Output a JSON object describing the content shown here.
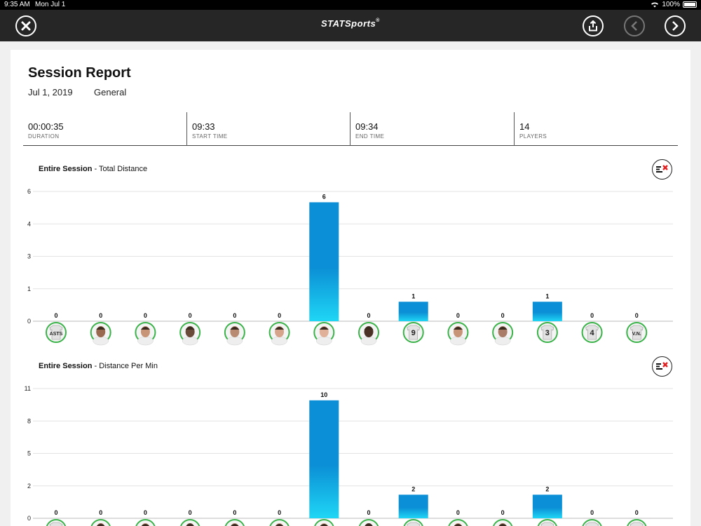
{
  "status": {
    "time": "9:35 AM",
    "date": "Mon Jul 1",
    "battery": "100%"
  },
  "nav": {
    "logo": "STATSports",
    "logo_reg": "®"
  },
  "report": {
    "title": "Session Report",
    "date": "Jul 1, 2019",
    "type": "General",
    "stats": [
      {
        "value": "00:00:35",
        "label": "DURATION"
      },
      {
        "value": "09:33",
        "label": "START TIME"
      },
      {
        "value": "09:34",
        "label": "END TIME"
      },
      {
        "value": "14",
        "label": "PLAYERS"
      }
    ]
  },
  "players": [
    {
      "kind": "shirt",
      "text": "ASTS"
    },
    {
      "kind": "photo",
      "skin": "#9a6a50"
    },
    {
      "kind": "photo",
      "skin": "#c89478"
    },
    {
      "kind": "photo",
      "skin": "#6a4a38"
    },
    {
      "kind": "photo",
      "skin": "#b88a72"
    },
    {
      "kind": "photo",
      "skin": "#d6a48a"
    },
    {
      "kind": "photo",
      "skin": "#e0b098"
    },
    {
      "kind": "photo",
      "skin": "#4a3326"
    },
    {
      "kind": "shirt",
      "text": "9"
    },
    {
      "kind": "photo",
      "skin": "#c89478"
    },
    {
      "kind": "photo",
      "skin": "#a87c66"
    },
    {
      "kind": "shirt",
      "text": "3"
    },
    {
      "kind": "shirt",
      "text": "4"
    },
    {
      "kind": "shirt",
      "text": "V.N."
    }
  ],
  "colors": {
    "bar_top": "#0b8fd6",
    "bar_bottom": "#1fd6f5",
    "avatar_ring": "#3cb34a"
  },
  "chart_data": [
    {
      "type": "bar",
      "title_bold": "Entire Session",
      "title_rest": " - Total Distance",
      "y_ticks": [
        "6",
        "4",
        "3",
        "1",
        "0"
      ],
      "ylim": [
        0,
        6
      ],
      "values": [
        0,
        0,
        0,
        0,
        0,
        0,
        5.5,
        0,
        0.9,
        0,
        0,
        0.9,
        0,
        0
      ],
      "labels": [
        "0",
        "0",
        "0",
        "0",
        "0",
        "0",
        "6",
        "0",
        "1",
        "0",
        "0",
        "1",
        "0",
        "0"
      ]
    },
    {
      "type": "bar",
      "title_bold": "Entire Session",
      "title_rest": " - Distance Per Min",
      "y_ticks": [
        "11",
        "8",
        "5",
        "2",
        "0"
      ],
      "ylim": [
        0,
        11
      ],
      "values": [
        0,
        0,
        0,
        0,
        0,
        0,
        10,
        0,
        2,
        0,
        0,
        2,
        0,
        0
      ],
      "labels": [
        "0",
        "0",
        "0",
        "0",
        "0",
        "0",
        "10",
        "0",
        "2",
        "0",
        "0",
        "2",
        "0",
        "0"
      ]
    }
  ]
}
